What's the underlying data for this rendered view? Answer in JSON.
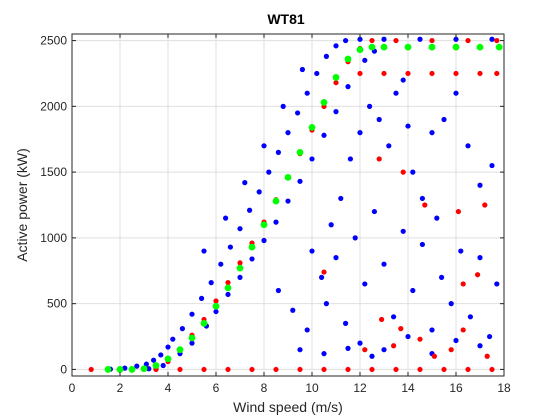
{
  "chart_data": {
    "type": "scatter",
    "title": "WT81",
    "xlabel": "Wind speed (m/s)",
    "ylabel": "Active power (kW)",
    "xlim": [
      0,
      18
    ],
    "ylim": [
      -50,
      2550
    ],
    "xticks": [
      0,
      2,
      4,
      6,
      8,
      10,
      12,
      14,
      16,
      18
    ],
    "yticks": [
      0,
      500,
      1000,
      1500,
      2000,
      2500
    ],
    "grid": true,
    "legend": "none",
    "colors": {
      "blue": "#0000ff",
      "red": "#ff0000",
      "green": "#00ff00"
    },
    "series": [
      {
        "color": "#0000ff",
        "values": [
          [
            1.6,
            2
          ],
          [
            2.2,
            10
          ],
          [
            2.7,
            25
          ],
          [
            3.1,
            40
          ],
          [
            3.4,
            70
          ],
          [
            3.7,
            110
          ],
          [
            4.0,
            170
          ],
          [
            4.2,
            230
          ],
          [
            4.6,
            310
          ],
          [
            5.0,
            420
          ],
          [
            5.4,
            540
          ],
          [
            5.8,
            660
          ],
          [
            6.2,
            800
          ],
          [
            6.6,
            930
          ],
          [
            7.0,
            1070
          ],
          [
            7.4,
            1210
          ],
          [
            7.8,
            1350
          ],
          [
            8.2,
            1500
          ],
          [
            8.6,
            1650
          ],
          [
            9.0,
            1800
          ],
          [
            9.4,
            1950
          ],
          [
            9.8,
            2100
          ],
          [
            10.2,
            2250
          ],
          [
            10.6,
            2380
          ],
          [
            11.0,
            2460
          ],
          [
            11.4,
            2500
          ],
          [
            12.0,
            2510
          ],
          [
            13.0,
            2510
          ],
          [
            14.5,
            2510
          ],
          [
            16.0,
            2510
          ],
          [
            17.5,
            2510
          ],
          [
            3.2,
            5
          ],
          [
            3.8,
            30
          ],
          [
            4.5,
            120
          ],
          [
            5.0,
            200
          ],
          [
            5.6,
            330
          ],
          [
            6.0,
            440
          ],
          [
            6.5,
            570
          ],
          [
            7.0,
            700
          ],
          [
            7.5,
            840
          ],
          [
            8.0,
            980
          ],
          [
            8.5,
            1120
          ],
          [
            9.0,
            1280
          ],
          [
            9.5,
            1430
          ],
          [
            10.0,
            1600
          ],
          [
            10.5,
            1780
          ],
          [
            11.0,
            1960
          ],
          [
            11.5,
            2150
          ],
          [
            12.2,
            2350
          ],
          [
            12.6,
            2420
          ],
          [
            5.5,
            900
          ],
          [
            6.4,
            1150
          ],
          [
            7.2,
            1420
          ],
          [
            8.0,
            1700
          ],
          [
            8.8,
            2000
          ],
          [
            9.6,
            2280
          ],
          [
            8.6,
            600
          ],
          [
            9.2,
            450
          ],
          [
            9.8,
            300
          ],
          [
            10.4,
            700
          ],
          [
            10.8,
            1100
          ],
          [
            11.2,
            1300
          ],
          [
            11.6,
            1600
          ],
          [
            12.0,
            1800
          ],
          [
            12.4,
            2000
          ],
          [
            12.8,
            1900
          ],
          [
            13.2,
            1700
          ],
          [
            13.8,
            2200
          ],
          [
            14.2,
            1500
          ],
          [
            14.6,
            1300
          ],
          [
            15.0,
            1800
          ],
          [
            15.5,
            1900
          ],
          [
            16.0,
            2100
          ],
          [
            16.5,
            1700
          ],
          [
            17.0,
            1400
          ],
          [
            17.5,
            1550
          ],
          [
            13.5,
            2100
          ],
          [
            14.0,
            1850
          ],
          [
            15.2,
            1150
          ],
          [
            10.0,
            900
          ],
          [
            10.6,
            500
          ],
          [
            11.0,
            850
          ],
          [
            11.4,
            350
          ],
          [
            11.8,
            1000
          ],
          [
            12.2,
            650
          ],
          [
            12.6,
            1200
          ],
          [
            13.0,
            800
          ],
          [
            13.4,
            400
          ],
          [
            13.8,
            1050
          ],
          [
            14.2,
            600
          ],
          [
            14.6,
            950
          ],
          [
            15.0,
            300
          ],
          [
            15.4,
            700
          ],
          [
            15.8,
            500
          ],
          [
            16.2,
            900
          ],
          [
            16.6,
            400
          ],
          [
            17.0,
            850
          ],
          [
            17.4,
            250
          ],
          [
            17.7,
            650
          ],
          [
            12.0,
            200
          ],
          [
            13.0,
            150
          ],
          [
            14.0,
            250
          ],
          [
            15.0,
            120
          ],
          [
            16.0,
            220
          ],
          [
            17.0,
            180
          ],
          [
            9.5,
            150
          ],
          [
            10.5,
            120
          ],
          [
            11.5,
            160
          ],
          [
            12.5,
            100
          ]
        ]
      },
      {
        "color": "#ff0000",
        "values": [
          [
            0.8,
            0
          ],
          [
            1.5,
            0
          ],
          [
            2.5,
            0
          ],
          [
            3.5,
            0
          ],
          [
            4.5,
            0
          ],
          [
            5.5,
            0
          ],
          [
            6.5,
            0
          ],
          [
            7.5,
            0
          ],
          [
            8.5,
            0
          ],
          [
            9.5,
            0
          ],
          [
            10.5,
            0
          ],
          [
            11.5,
            0
          ],
          [
            12.5,
            0
          ],
          [
            13.5,
            0
          ],
          [
            14.5,
            0
          ],
          [
            15.5,
            0
          ],
          [
            16.5,
            0
          ],
          [
            17.5,
            0
          ],
          [
            3.5,
            5
          ],
          [
            4.0,
            60
          ],
          [
            4.5,
            150
          ],
          [
            5.0,
            260
          ],
          [
            5.5,
            380
          ],
          [
            6.0,
            520
          ],
          [
            6.5,
            660
          ],
          [
            7.0,
            810
          ],
          [
            7.5,
            960
          ],
          [
            8.0,
            1120
          ],
          [
            8.5,
            1290
          ],
          [
            9.0,
            1460
          ],
          [
            9.5,
            1640
          ],
          [
            10.0,
            1820
          ],
          [
            10.5,
            2000
          ],
          [
            11.0,
            2180
          ],
          [
            11.5,
            2340
          ],
          [
            12.0,
            2440
          ],
          [
            12.5,
            2500
          ],
          [
            13.5,
            2500
          ],
          [
            15.0,
            2500
          ],
          [
            16.5,
            2500
          ],
          [
            17.7,
            2500
          ],
          [
            12.0,
            2250
          ],
          [
            13.0,
            2250
          ],
          [
            14.0,
            2250
          ],
          [
            15.0,
            2250
          ],
          [
            16.0,
            2250
          ],
          [
            17.0,
            2250
          ],
          [
            17.7,
            2250
          ],
          [
            12.8,
            1600
          ],
          [
            13.8,
            1500
          ],
          [
            14.7,
            1250
          ],
          [
            16.1,
            1200
          ],
          [
            17.2,
            1250
          ],
          [
            12.2,
            150
          ],
          [
            13.4,
            180
          ],
          [
            15.1,
            100
          ],
          [
            16.3,
            300
          ],
          [
            16.9,
            720
          ],
          [
            17.3,
            100
          ],
          [
            14.5,
            230
          ],
          [
            15.8,
            150
          ],
          [
            16.3,
            650
          ],
          [
            12.9,
            380
          ],
          [
            10.5,
            740
          ],
          [
            13.7,
            310
          ]
        ]
      },
      {
        "color": "#00ff00",
        "values": [
          [
            1.5,
            0
          ],
          [
            2.0,
            0
          ],
          [
            2.5,
            0
          ],
          [
            3.0,
            5
          ],
          [
            3.5,
            30
          ],
          [
            4.0,
            80
          ],
          [
            4.5,
            150
          ],
          [
            5.0,
            240
          ],
          [
            5.5,
            350
          ],
          [
            6.0,
            480
          ],
          [
            6.5,
            620
          ],
          [
            7.0,
            770
          ],
          [
            7.5,
            930
          ],
          [
            8.0,
            1100
          ],
          [
            8.5,
            1280
          ],
          [
            9.0,
            1460
          ],
          [
            9.5,
            1650
          ],
          [
            10.0,
            1840
          ],
          [
            10.5,
            2030
          ],
          [
            11.0,
            2220
          ],
          [
            11.5,
            2360
          ],
          [
            12.0,
            2430
          ],
          [
            12.5,
            2450
          ],
          [
            13.0,
            2450
          ],
          [
            14.0,
            2450
          ],
          [
            15.0,
            2450
          ],
          [
            16.0,
            2450
          ],
          [
            17.0,
            2450
          ],
          [
            17.8,
            2450
          ]
        ]
      }
    ]
  }
}
